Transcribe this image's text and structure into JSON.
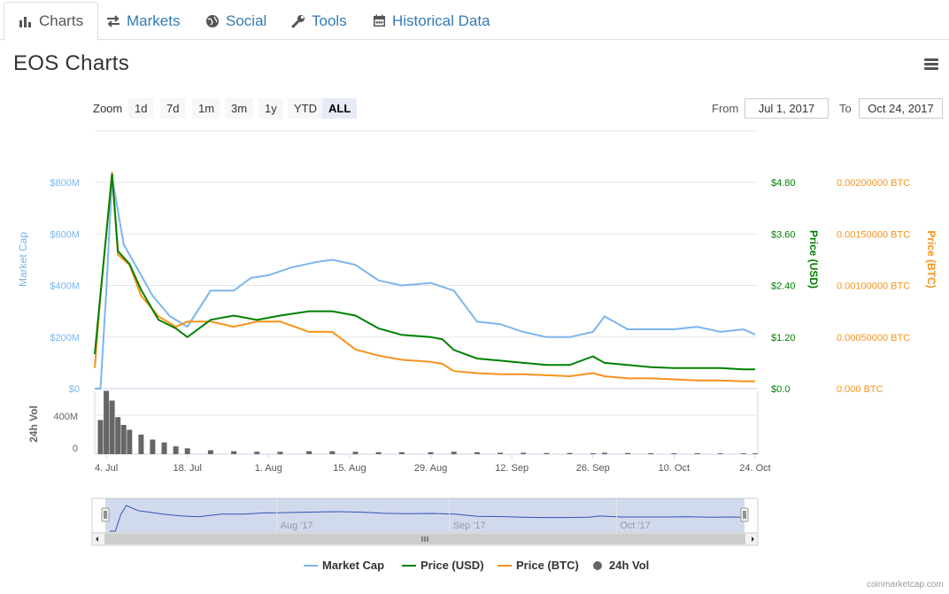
{
  "tabs": [
    {
      "label": "Charts",
      "icon": "bar-chart-icon",
      "active": true
    },
    {
      "label": "Markets",
      "icon": "exchange-arrows-icon",
      "active": false
    },
    {
      "label": "Social",
      "icon": "globe-icon",
      "active": false
    },
    {
      "label": "Tools",
      "icon": "wrench-icon",
      "active": false
    },
    {
      "label": "Historical Data",
      "icon": "calendar-icon",
      "active": false
    }
  ],
  "page": {
    "title": "EOS Charts",
    "menu_icon": "hamburger-menu-icon"
  },
  "zoom": {
    "label": "Zoom",
    "buttons": [
      "1d",
      "7d",
      "1m",
      "3m",
      "1y",
      "YTD",
      "ALL"
    ],
    "active": "ALL"
  },
  "range": {
    "from_label": "From",
    "from_value": "Jul 1, 2017",
    "to_label": "To",
    "to_value": "Oct 24, 2017"
  },
  "credit": "coinmarketcap.com",
  "colors": {
    "market_cap": "#7cb5ec",
    "price_usd": "#008000",
    "price_btc": "#f7931a",
    "volume": "#666666",
    "navigator": "#2f52b7"
  },
  "chart_data": {
    "type": "line",
    "x_start": "2017-07-02",
    "x_end": "2017-10-24",
    "x_ticks": [
      "4. Jul",
      "18. Jul",
      "1. Aug",
      "15. Aug",
      "29. Aug",
      "12. Sep",
      "26. Sep",
      "10. Oct",
      "24. Oct"
    ],
    "x_tick_dates": [
      "2017-07-04",
      "2017-07-18",
      "2017-08-01",
      "2017-08-15",
      "2017-08-29",
      "2017-09-12",
      "2017-09-26",
      "2017-10-10",
      "2017-10-24"
    ],
    "axes": {
      "market_cap": {
        "title": "Market Cap",
        "ticks": [
          "$0",
          "$200M",
          "$400M",
          "$600M",
          "$800M"
        ],
        "ylim": [
          0,
          800
        ]
      },
      "price_usd": {
        "title": "Price (USD)",
        "ticks": [
          "$0.0",
          "$1.20",
          "$2.40",
          "$3.60",
          "$4.80"
        ],
        "ylim": [
          0,
          4.8
        ]
      },
      "price_btc": {
        "title": "Price (BTC)",
        "ticks": [
          "0.000 BTC",
          "0.00050000 BTC",
          "0.00100000 BTC",
          "0.00150000 BTC",
          "0.00200000 BTC"
        ],
        "ylim": [
          0,
          0.002
        ]
      },
      "volume": {
        "title": "24h Vol",
        "ticks": [
          "0",
          "400M"
        ],
        "ylim": [
          0,
          700
        ]
      }
    },
    "navigator_ticks": [
      "Aug '17",
      "Sep '17",
      "Oct '17"
    ],
    "series": [
      {
        "name": "Market Cap",
        "key": "market_cap",
        "x": [
          "2017-07-02",
          "2017-07-03",
          "2017-07-04",
          "2017-07-05",
          "2017-07-07",
          "2017-07-09",
          "2017-07-12",
          "2017-07-15",
          "2017-07-18",
          "2017-07-22",
          "2017-07-26",
          "2017-07-29",
          "2017-08-01",
          "2017-08-05",
          "2017-08-09",
          "2017-08-12",
          "2017-08-16",
          "2017-08-20",
          "2017-08-24",
          "2017-08-29",
          "2017-09-02",
          "2017-09-06",
          "2017-09-10",
          "2017-09-14",
          "2017-09-18",
          "2017-09-22",
          "2017-09-26",
          "2017-09-28",
          "2017-10-02",
          "2017-10-06",
          "2017-10-10",
          "2017-10-14",
          "2017-10-18",
          "2017-10-22",
          "2017-10-24"
        ],
        "values": [
          0,
          0,
          380,
          820,
          560,
          480,
          360,
          280,
          240,
          380,
          380,
          430,
          440,
          470,
          490,
          500,
          480,
          420,
          400,
          410,
          380,
          260,
          250,
          220,
          200,
          200,
          220,
          280,
          230,
          230,
          230,
          240,
          220,
          230,
          210
        ]
      },
      {
        "name": "Price (USD)",
        "key": "price_usd",
        "x": [
          "2017-07-02",
          "2017-07-03",
          "2017-07-04",
          "2017-07-05",
          "2017-07-06",
          "2017-07-08",
          "2017-07-10",
          "2017-07-13",
          "2017-07-16",
          "2017-07-18",
          "2017-07-22",
          "2017-07-26",
          "2017-07-30",
          "2017-08-03",
          "2017-08-08",
          "2017-08-12",
          "2017-08-16",
          "2017-08-20",
          "2017-08-24",
          "2017-08-29",
          "2017-08-31",
          "2017-09-02",
          "2017-09-06",
          "2017-09-10",
          "2017-09-14",
          "2017-09-18",
          "2017-09-22",
          "2017-09-26",
          "2017-09-28",
          "2017-10-02",
          "2017-10-06",
          "2017-10-10",
          "2017-10-14",
          "2017-10-18",
          "2017-10-22",
          "2017-10-24"
        ],
        "values": [
          0.8,
          2.2,
          3.6,
          5.0,
          3.2,
          2.9,
          2.3,
          1.6,
          1.4,
          1.2,
          1.6,
          1.7,
          1.6,
          1.7,
          1.8,
          1.8,
          1.7,
          1.4,
          1.25,
          1.2,
          1.15,
          0.9,
          0.7,
          0.65,
          0.6,
          0.55,
          0.55,
          0.75,
          0.6,
          0.55,
          0.5,
          0.48,
          0.48,
          0.48,
          0.45,
          0.45
        ]
      },
      {
        "name": "Price (BTC)",
        "key": "price_btc",
        "x": [
          "2017-07-02",
          "2017-07-03",
          "2017-07-04",
          "2017-07-05",
          "2017-07-06",
          "2017-07-08",
          "2017-07-10",
          "2017-07-13",
          "2017-07-16",
          "2017-07-18",
          "2017-07-22",
          "2017-07-26",
          "2017-07-30",
          "2017-08-03",
          "2017-08-08",
          "2017-08-12",
          "2017-08-16",
          "2017-08-20",
          "2017-08-24",
          "2017-08-29",
          "2017-08-31",
          "2017-09-02",
          "2017-09-06",
          "2017-09-10",
          "2017-09-14",
          "2017-09-18",
          "2017-09-22",
          "2017-09-26",
          "2017-09-28",
          "2017-10-02",
          "2017-10-06",
          "2017-10-10",
          "2017-10-14",
          "2017-10-18",
          "2017-10-22",
          "2017-10-24"
        ],
        "values": [
          0.0002,
          0.0009,
          0.0015,
          0.0021,
          0.0013,
          0.0012,
          0.0009,
          0.0007,
          0.0006,
          0.00065,
          0.00065,
          0.0006,
          0.00065,
          0.00065,
          0.00055,
          0.00055,
          0.00038,
          0.00032,
          0.00028,
          0.00026,
          0.00024,
          0.00017,
          0.00015,
          0.00014,
          0.00014,
          0.00013,
          0.00012,
          0.00015,
          0.00012,
          0.0001,
          0.0001,
          9e-05,
          8e-05,
          8e-05,
          7e-05,
          7e-05
        ]
      },
      {
        "name": "24h Vol",
        "key": "volume",
        "x": [
          "2017-07-02",
          "2017-07-03",
          "2017-07-04",
          "2017-07-05",
          "2017-07-06",
          "2017-07-07",
          "2017-07-08",
          "2017-07-10",
          "2017-07-12",
          "2017-07-14",
          "2017-07-16",
          "2017-07-18",
          "2017-07-22",
          "2017-07-26",
          "2017-07-30",
          "2017-08-03",
          "2017-08-08",
          "2017-08-12",
          "2017-08-16",
          "2017-08-20",
          "2017-08-24",
          "2017-08-29",
          "2017-09-02",
          "2017-09-06",
          "2017-09-10",
          "2017-09-14",
          "2017-09-18",
          "2017-09-22",
          "2017-09-26",
          "2017-09-28",
          "2017-10-02",
          "2017-10-06",
          "2017-10-10",
          "2017-10-14",
          "2017-10-18",
          "2017-10-22",
          "2017-10-24"
        ],
        "values": [
          0,
          350,
          650,
          550,
          380,
          300,
          250,
          200,
          150,
          120,
          80,
          60,
          40,
          30,
          25,
          25,
          30,
          30,
          25,
          20,
          20,
          20,
          25,
          20,
          15,
          15,
          12,
          12,
          10,
          15,
          12,
          10,
          10,
          10,
          8,
          8,
          8
        ]
      }
    ],
    "legend": [
      "Market Cap",
      "Price (USD)",
      "Price (BTC)",
      "24h Vol"
    ],
    "legend_position": "bottom",
    "grid": true
  }
}
